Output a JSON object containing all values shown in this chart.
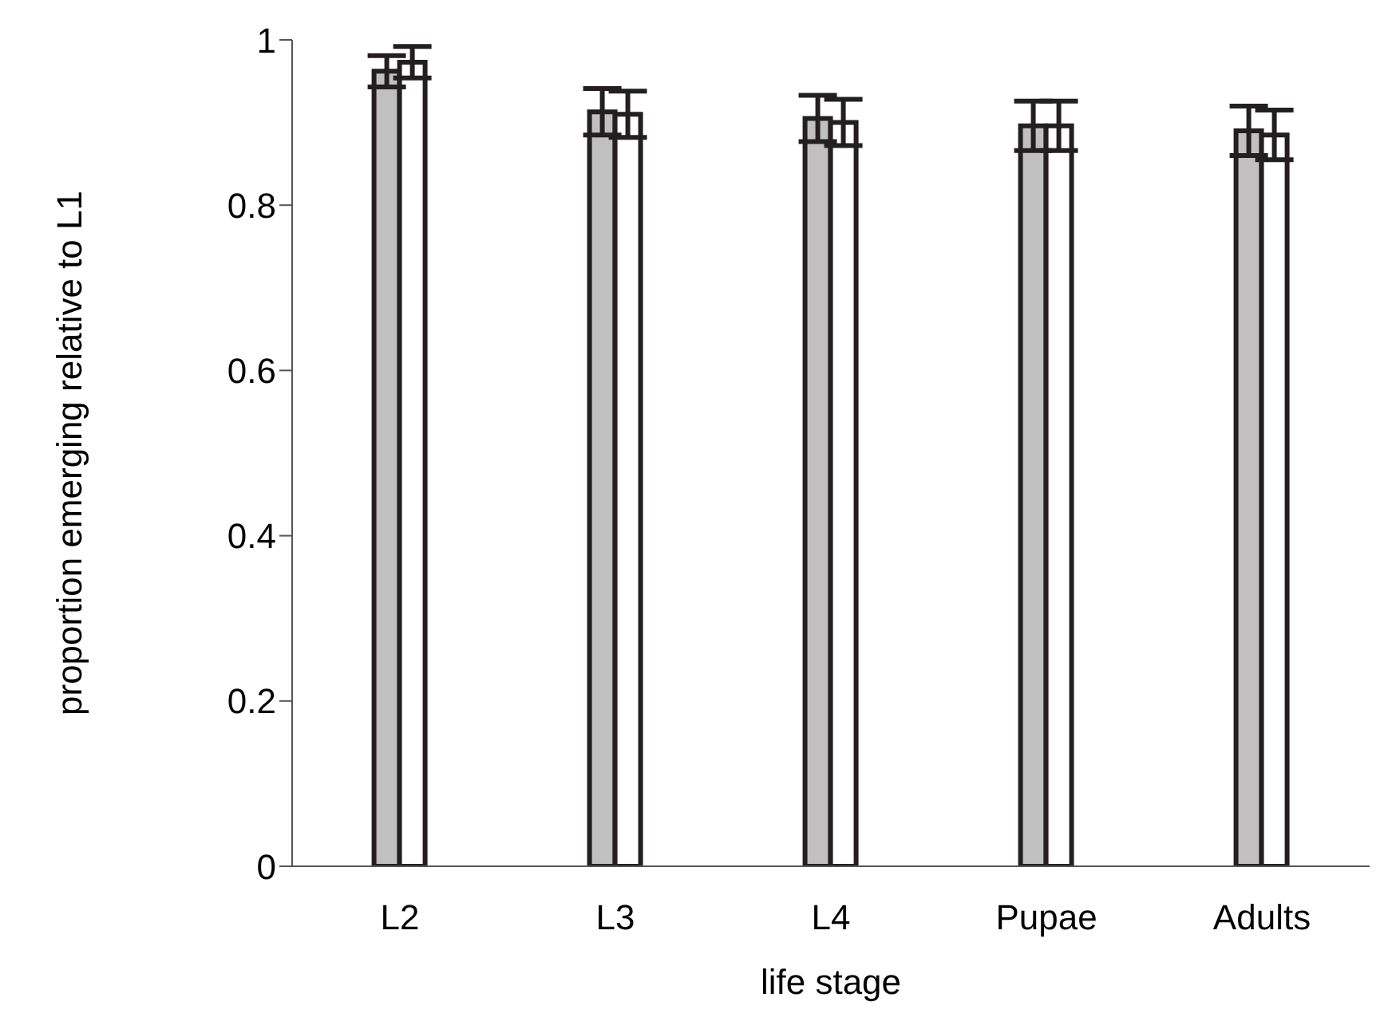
{
  "chart_data": {
    "type": "bar",
    "xlabel": "life stage",
    "ylabel": "proportion emerging relative to L1",
    "categories": [
      "L2",
      "L3",
      "L4",
      "Pupae",
      "Adults"
    ],
    "series": [
      {
        "color": "#c0c0c0",
        "values": [
          0.962,
          0.913,
          0.905,
          0.896,
          0.89
        ],
        "errors": [
          0.019,
          0.028,
          0.028,
          0.03,
          0.03
        ]
      },
      {
        "color": "#ffffff",
        "values": [
          0.973,
          0.91,
          0.9,
          0.896,
          0.885
        ],
        "errors": [
          0.019,
          0.028,
          0.028,
          0.03,
          0.03
        ]
      }
    ],
    "ylim": [
      0,
      1
    ],
    "yticks": [
      0,
      0.2,
      0.4,
      0.6,
      0.8,
      1
    ],
    "grid": false,
    "legend": false
  }
}
